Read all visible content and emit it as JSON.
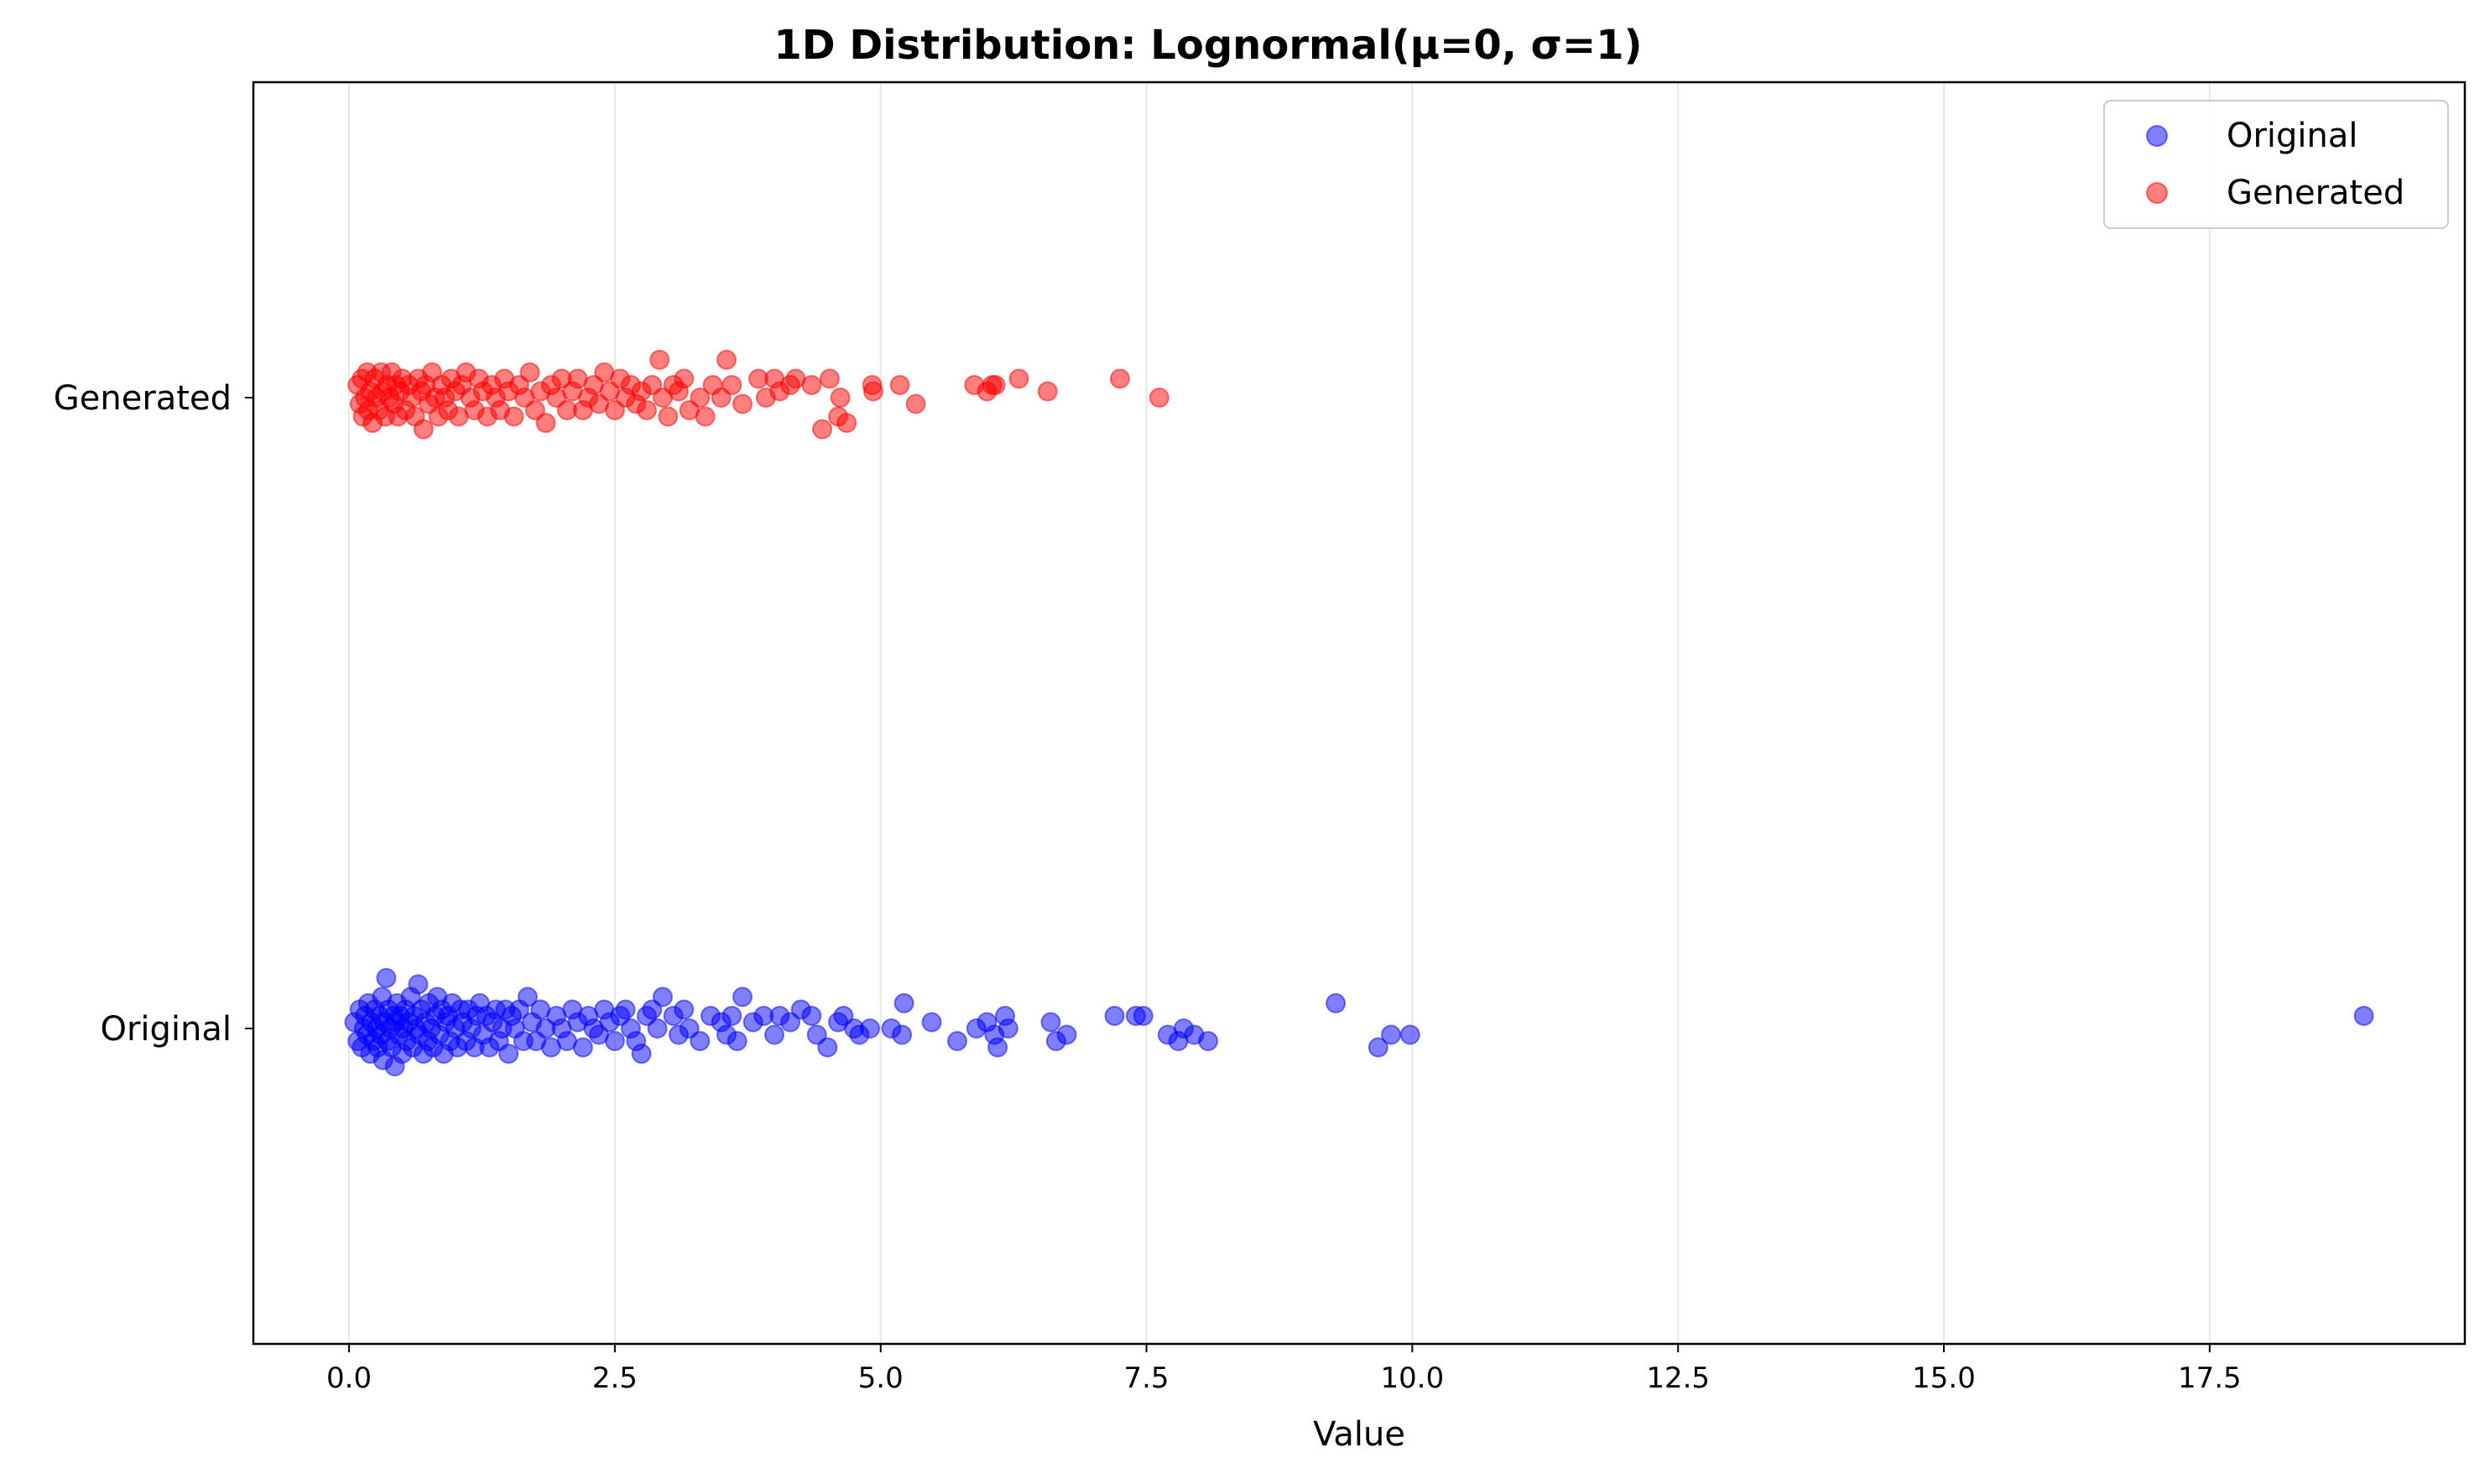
{
  "chart_data": {
    "type": "scatter",
    "title": "1D Distribution: Lognormal(μ=0, σ=1)",
    "xlabel": "Value",
    "ylabel": "",
    "xlim": [
      -0.9,
      19.9
    ],
    "ylim": [
      -0.5,
      1.5
    ],
    "xticks": [
      0.0,
      2.5,
      5.0,
      7.5,
      10.0,
      12.5,
      15.0,
      17.5
    ],
    "xtick_labels": [
      "0.0",
      "2.5",
      "5.0",
      "7.5",
      "10.0",
      "12.5",
      "15.0",
      "17.5"
    ],
    "yticks": [
      0,
      1
    ],
    "ytick_labels": [
      "Original",
      "Generated"
    ],
    "grid": "x-axis, vertical lines",
    "legend_position": "top-right",
    "marker_alpha": 0.5,
    "series": [
      {
        "name": "Original",
        "color": "#0000ff",
        "points": [
          [
            0.05,
            0.01
          ],
          [
            0.08,
            -0.02
          ],
          [
            0.1,
            0.03
          ],
          [
            0.12,
            -0.03
          ],
          [
            0.14,
            0.0
          ],
          [
            0.15,
            0.02
          ],
          [
            0.17,
            -0.01
          ],
          [
            0.18,
            0.04
          ],
          [
            0.2,
            -0.04
          ],
          [
            0.21,
            0.01
          ],
          [
            0.23,
            -0.02
          ],
          [
            0.24,
            0.03
          ],
          [
            0.26,
            0.0
          ],
          [
            0.27,
            -0.03
          ],
          [
            0.29,
            0.02
          ],
          [
            0.3,
            -0.01
          ],
          [
            0.31,
            0.05
          ],
          [
            0.32,
            -0.05
          ],
          [
            0.33,
            0.01
          ],
          [
            0.35,
            0.08
          ],
          [
            0.36,
            -0.02
          ],
          [
            0.37,
            0.03
          ],
          [
            0.39,
            0.0
          ],
          [
            0.4,
            -0.03
          ],
          [
            0.42,
            0.02
          ],
          [
            0.43,
            -0.06
          ],
          [
            0.44,
            0.01
          ],
          [
            0.45,
            0.04
          ],
          [
            0.47,
            -0.01
          ],
          [
            0.48,
            0.02
          ],
          [
            0.5,
            -0.04
          ],
          [
            0.51,
            0.0
          ],
          [
            0.53,
            0.03
          ],
          [
            0.54,
            -0.02
          ],
          [
            0.56,
            0.01
          ],
          [
            0.58,
            0.05
          ],
          [
            0.6,
            -0.03
          ],
          [
            0.61,
            0.02
          ],
          [
            0.63,
            0.0
          ],
          [
            0.65,
            0.07
          ],
          [
            0.66,
            -0.01
          ],
          [
            0.68,
            0.03
          ],
          [
            0.7,
            -0.04
          ],
          [
            0.72,
            0.01
          ],
          [
            0.74,
            -0.02
          ],
          [
            0.75,
            0.04
          ],
          [
            0.77,
            0.0
          ],
          [
            0.79,
            -0.03
          ],
          [
            0.81,
            0.02
          ],
          [
            0.83,
            0.05
          ],
          [
            0.85,
            -0.01
          ],
          [
            0.87,
            0.03
          ],
          [
            0.89,
            -0.04
          ],
          [
            0.91,
            0.01
          ],
          [
            0.93,
            0.02
          ],
          [
            0.95,
            -0.02
          ],
          [
            0.97,
            0.04
          ],
          [
            1.0,
            0.0
          ],
          [
            1.02,
            -0.03
          ],
          [
            1.05,
            0.03
          ],
          [
            1.07,
            0.01
          ],
          [
            1.1,
            -0.02
          ],
          [
            1.12,
            0.03
          ],
          [
            1.15,
            0.0
          ],
          [
            1.18,
            -0.03
          ],
          [
            1.2,
            0.02
          ],
          [
            1.23,
            0.04
          ],
          [
            1.26,
            -0.01
          ],
          [
            1.29,
            0.02
          ],
          [
            1.32,
            -0.03
          ],
          [
            1.35,
            0.01
          ],
          [
            1.38,
            0.03
          ],
          [
            1.41,
            -0.02
          ],
          [
            1.44,
            0.0
          ],
          [
            1.47,
            0.03
          ],
          [
            1.5,
            -0.04
          ],
          [
            1.53,
            0.02
          ],
          [
            1.56,
            0.0
          ],
          [
            1.6,
            0.03
          ],
          [
            1.64,
            -0.02
          ],
          [
            1.68,
            0.05
          ],
          [
            1.72,
            0.01
          ],
          [
            1.76,
            -0.02
          ],
          [
            1.8,
            0.03
          ],
          [
            1.85,
            0.0
          ],
          [
            1.9,
            -0.03
          ],
          [
            1.95,
            0.02
          ],
          [
            2.0,
            0.0
          ],
          [
            2.05,
            -0.02
          ],
          [
            2.1,
            0.03
          ],
          [
            2.15,
            0.01
          ],
          [
            2.2,
            -0.03
          ],
          [
            2.25,
            0.02
          ],
          [
            2.3,
            0.0
          ],
          [
            2.35,
            -0.01
          ],
          [
            2.4,
            0.03
          ],
          [
            2.45,
            0.01
          ],
          [
            2.5,
            -0.02
          ],
          [
            2.55,
            0.02
          ],
          [
            2.6,
            0.03
          ],
          [
            2.65,
            0.0
          ],
          [
            2.7,
            -0.02
          ],
          [
            2.75,
            -0.04
          ],
          [
            2.8,
            0.02
          ],
          [
            2.85,
            0.03
          ],
          [
            2.9,
            0.0
          ],
          [
            2.95,
            0.05
          ],
          [
            3.05,
            0.02
          ],
          [
            3.1,
            -0.01
          ],
          [
            3.15,
            0.03
          ],
          [
            3.2,
            0.0
          ],
          [
            3.3,
            -0.02
          ],
          [
            3.4,
            0.02
          ],
          [
            3.5,
            0.01
          ],
          [
            3.55,
            -0.01
          ],
          [
            3.6,
            0.02
          ],
          [
            3.65,
            -0.02
          ],
          [
            3.7,
            0.05
          ],
          [
            3.8,
            0.01
          ],
          [
            3.9,
            0.02
          ],
          [
            4.0,
            -0.01
          ],
          [
            4.05,
            0.02
          ],
          [
            4.15,
            0.01
          ],
          [
            4.25,
            0.03
          ],
          [
            4.35,
            0.02
          ],
          [
            4.4,
            -0.01
          ],
          [
            4.5,
            -0.03
          ],
          [
            4.6,
            0.01
          ],
          [
            4.65,
            0.02
          ],
          [
            4.75,
            0.0
          ],
          [
            4.8,
            -0.01
          ],
          [
            4.9,
            0.0
          ],
          [
            5.1,
            0.0
          ],
          [
            5.2,
            -0.01
          ],
          [
            5.22,
            0.04
          ],
          [
            5.48,
            0.01
          ],
          [
            5.72,
            -0.02
          ],
          [
            5.9,
            0.0
          ],
          [
            6.0,
            0.01
          ],
          [
            6.07,
            -0.01
          ],
          [
            6.1,
            -0.03
          ],
          [
            6.17,
            0.02
          ],
          [
            6.2,
            0.0
          ],
          [
            6.6,
            0.01
          ],
          [
            6.65,
            -0.02
          ],
          [
            6.75,
            -0.01
          ],
          [
            7.2,
            0.02
          ],
          [
            7.4,
            0.02
          ],
          [
            7.47,
            0.02
          ],
          [
            7.7,
            -0.01
          ],
          [
            7.8,
            -0.02
          ],
          [
            7.85,
            0.0
          ],
          [
            7.95,
            -0.01
          ],
          [
            8.08,
            -0.02
          ],
          [
            9.28,
            0.04
          ],
          [
            9.68,
            -0.03
          ],
          [
            9.8,
            -0.01
          ],
          [
            9.98,
            -0.01
          ],
          [
            18.95,
            0.02
          ]
        ]
      },
      {
        "name": "Generated",
        "color": "#ff0000",
        "points": [
          [
            0.08,
            0.02
          ],
          [
            0.1,
            -0.01
          ],
          [
            0.12,
            0.03
          ],
          [
            0.13,
            -0.03
          ],
          [
            0.15,
            0.0
          ],
          [
            0.17,
            0.04
          ],
          [
            0.18,
            -0.02
          ],
          [
            0.2,
            0.01
          ],
          [
            0.22,
            -0.04
          ],
          [
            0.24,
            0.03
          ],
          [
            0.26,
            0.0
          ],
          [
            0.28,
            -0.02
          ],
          [
            0.3,
            0.04
          ],
          [
            0.32,
            0.01
          ],
          [
            0.34,
            -0.03
          ],
          [
            0.36,
            0.02
          ],
          [
            0.38,
            0.0
          ],
          [
            0.4,
            0.04
          ],
          [
            0.42,
            -0.01
          ],
          [
            0.44,
            0.02
          ],
          [
            0.46,
            -0.03
          ],
          [
            0.48,
            0.01
          ],
          [
            0.5,
            0.03
          ],
          [
            0.53,
            -0.02
          ],
          [
            0.56,
            0.02
          ],
          [
            0.59,
            0.0
          ],
          [
            0.62,
            -0.03
          ],
          [
            0.65,
            0.03
          ],
          [
            0.68,
            0.01
          ],
          [
            0.7,
            -0.05
          ],
          [
            0.72,
            0.02
          ],
          [
            0.75,
            -0.01
          ],
          [
            0.78,
            0.04
          ],
          [
            0.81,
            0.0
          ],
          [
            0.84,
            -0.03
          ],
          [
            0.87,
            0.02
          ],
          [
            0.9,
            0.0
          ],
          [
            0.93,
            -0.02
          ],
          [
            0.96,
            0.03
          ],
          [
            1.0,
            0.01
          ],
          [
            1.03,
            -0.03
          ],
          [
            1.06,
            0.02
          ],
          [
            1.1,
            0.04
          ],
          [
            1.14,
            0.0
          ],
          [
            1.18,
            -0.02
          ],
          [
            1.22,
            0.03
          ],
          [
            1.26,
            0.01
          ],
          [
            1.3,
            -0.03
          ],
          [
            1.34,
            0.02
          ],
          [
            1.38,
            0.0
          ],
          [
            1.42,
            -0.02
          ],
          [
            1.46,
            0.03
          ],
          [
            1.5,
            0.01
          ],
          [
            1.55,
            -0.03
          ],
          [
            1.6,
            0.02
          ],
          [
            1.65,
            0.0
          ],
          [
            1.7,
            0.04
          ],
          [
            1.75,
            -0.02
          ],
          [
            1.8,
            0.01
          ],
          [
            1.85,
            -0.04
          ],
          [
            1.9,
            0.02
          ],
          [
            1.95,
            0.0
          ],
          [
            2.0,
            0.03
          ],
          [
            2.05,
            -0.02
          ],
          [
            2.1,
            0.01
          ],
          [
            2.15,
            0.03
          ],
          [
            2.2,
            -0.02
          ],
          [
            2.25,
            0.0
          ],
          [
            2.3,
            0.02
          ],
          [
            2.35,
            -0.01
          ],
          [
            2.4,
            0.04
          ],
          [
            2.45,
            0.01
          ],
          [
            2.5,
            -0.02
          ],
          [
            2.55,
            0.03
          ],
          [
            2.6,
            0.0
          ],
          [
            2.65,
            0.02
          ],
          [
            2.7,
            -0.01
          ],
          [
            2.75,
            0.01
          ],
          [
            2.8,
            -0.02
          ],
          [
            2.85,
            0.02
          ],
          [
            2.92,
            0.06
          ],
          [
            2.95,
            0.0
          ],
          [
            3.0,
            -0.03
          ],
          [
            3.05,
            0.02
          ],
          [
            3.1,
            0.01
          ],
          [
            3.15,
            0.03
          ],
          [
            3.2,
            -0.02
          ],
          [
            3.3,
            0.0
          ],
          [
            3.35,
            -0.03
          ],
          [
            3.42,
            0.02
          ],
          [
            3.5,
            0.0
          ],
          [
            3.55,
            0.06
          ],
          [
            3.6,
            0.02
          ],
          [
            3.7,
            -0.01
          ],
          [
            3.85,
            0.03
          ],
          [
            3.92,
            0.0
          ],
          [
            4.0,
            0.03
          ],
          [
            4.05,
            0.01
          ],
          [
            4.15,
            0.02
          ],
          [
            4.2,
            0.03
          ],
          [
            4.35,
            0.02
          ],
          [
            4.45,
            -0.05
          ],
          [
            4.52,
            0.03
          ],
          [
            4.6,
            -0.03
          ],
          [
            4.62,
            0.0
          ],
          [
            4.68,
            -0.04
          ],
          [
            4.92,
            0.02
          ],
          [
            4.93,
            0.01
          ],
          [
            5.18,
            0.02
          ],
          [
            5.33,
            -0.01
          ],
          [
            5.88,
            0.02
          ],
          [
            6.0,
            0.01
          ],
          [
            6.05,
            0.02
          ],
          [
            6.08,
            0.02
          ],
          [
            6.3,
            0.03
          ],
          [
            6.57,
            0.01
          ],
          [
            7.25,
            0.03
          ],
          [
            7.62,
            0.0
          ]
        ]
      }
    ]
  }
}
